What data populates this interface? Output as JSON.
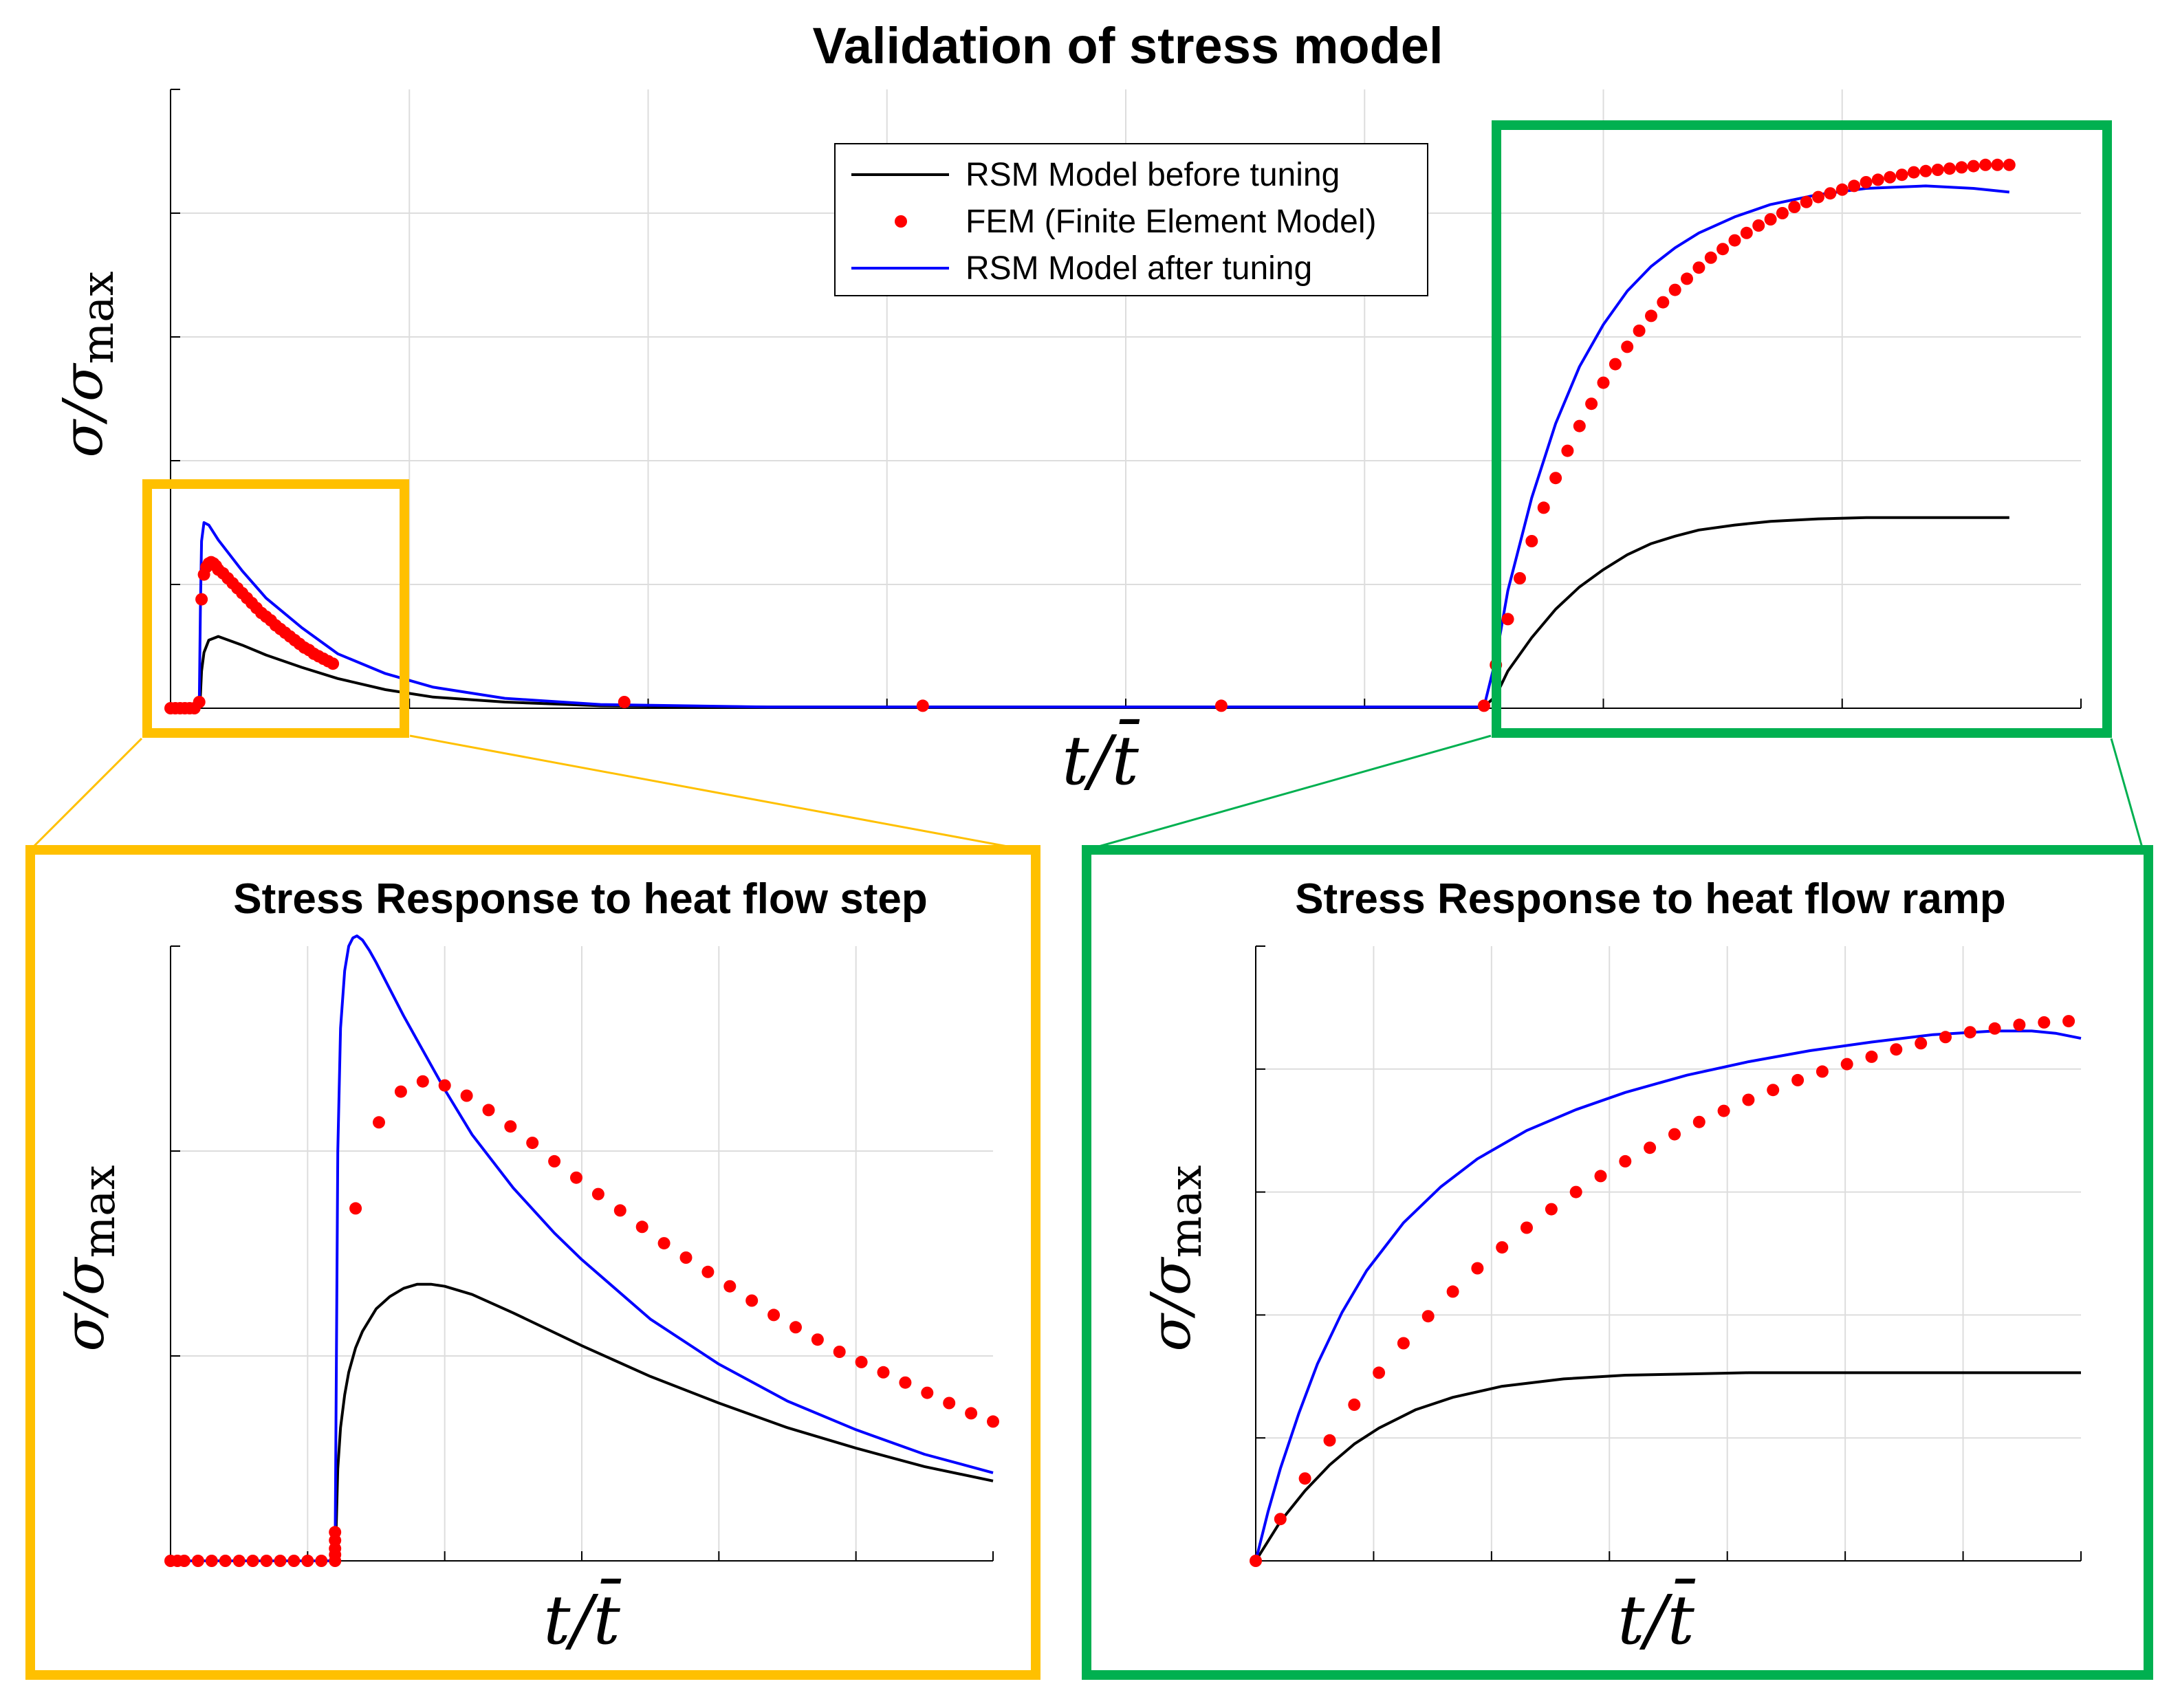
{
  "colors": {
    "yellow_box": "#FFC000",
    "green_box": "#00B050",
    "rsm_before": "#000000",
    "fem": "#FF0000",
    "rsm_after": "#0000FF",
    "grid": "#DDDDDD",
    "axis": "#000000"
  },
  "chart_data": [
    {
      "id": "overview",
      "type": "line",
      "title": "Validation of stress model",
      "xlabel": "t/t̄",
      "ylabel_base": "σ/σ",
      "ylabel_sub": "max",
      "xlim": [
        0,
        8
      ],
      "ylim": [
        0,
        5
      ],
      "legend": {
        "placement": "top-center",
        "entries": [
          "RSM Model before tuning",
          "FEM (Finite Element Model)",
          "RSM Model after tuning"
        ]
      },
      "series": [
        {
          "name": "RSM Model before tuning",
          "style": "line",
          "x": [
            0,
            0.12,
            0.125,
            0.13,
            0.14,
            0.16,
            0.2,
            0.3,
            0.4,
            0.55,
            0.7,
            0.9,
            1.1,
            1.4,
            1.8,
            2.5,
            3.5,
            4.5,
            5.5,
            5.55,
            5.6,
            5.7,
            5.8,
            5.9,
            6.0,
            6.1,
            6.2,
            6.3,
            6.4,
            6.55,
            6.7,
            6.9,
            7.1,
            7.35,
            7.7
          ],
          "y": [
            0,
            0,
            0.1,
            0.3,
            0.45,
            0.55,
            0.58,
            0.51,
            0.43,
            0.33,
            0.24,
            0.15,
            0.09,
            0.05,
            0.02,
            0.01,
            0.01,
            0.01,
            0.01,
            0.1,
            0.3,
            0.57,
            0.8,
            0.98,
            1.12,
            1.24,
            1.33,
            1.39,
            1.44,
            1.48,
            1.51,
            1.53,
            1.54,
            1.54,
            1.54
          ]
        },
        {
          "name": "RSM Model after tuning",
          "style": "line",
          "x": [
            0,
            0.12,
            0.125,
            0.13,
            0.14,
            0.16,
            0.2,
            0.3,
            0.4,
            0.55,
            0.7,
            0.9,
            1.1,
            1.4,
            1.8,
            2.5,
            3.5,
            4.5,
            5.5,
            5.55,
            5.6,
            5.7,
            5.8,
            5.9,
            6.0,
            6.1,
            6.2,
            6.3,
            6.4,
            6.55,
            6.7,
            6.9,
            7.1,
            7.35,
            7.55,
            7.7
          ],
          "y": [
            0,
            0,
            0.8,
            1.35,
            1.5,
            1.48,
            1.36,
            1.11,
            0.89,
            0.65,
            0.44,
            0.28,
            0.17,
            0.08,
            0.03,
            0.01,
            0.01,
            0.01,
            0.01,
            0.4,
            0.95,
            1.7,
            2.3,
            2.76,
            3.1,
            3.37,
            3.57,
            3.72,
            3.84,
            3.97,
            4.07,
            4.15,
            4.2,
            4.22,
            4.2,
            4.17
          ]
        },
        {
          "name": "FEM (Finite Element Model)",
          "style": "markers",
          "x": [
            0,
            0.02,
            0.04,
            0.06,
            0.08,
            0.1,
            0.12,
            0.13,
            0.14,
            0.15,
            0.16,
            0.17,
            0.18,
            0.19,
            0.2,
            0.22,
            0.24,
            0.26,
            0.28,
            0.3,
            0.32,
            0.34,
            0.36,
            0.38,
            0.4,
            0.42,
            0.44,
            0.46,
            0.48,
            0.5,
            0.52,
            0.54,
            0.56,
            0.58,
            0.6,
            0.62,
            0.64,
            0.66,
            0.68,
            1.9,
            3.15,
            4.4,
            5.5,
            5.55,
            5.6,
            5.65,
            5.7,
            5.75,
            5.8,
            5.85,
            5.9,
            5.95,
            6.0,
            6.05,
            6.1,
            6.15,
            6.2,
            6.25,
            6.3,
            6.35,
            6.4,
            6.45,
            6.5,
            6.55,
            6.6,
            6.65,
            6.7,
            6.75,
            6.8,
            6.85,
            6.9,
            6.95,
            7.0,
            7.05,
            7.1,
            7.15,
            7.2,
            7.25,
            7.3,
            7.35,
            7.4,
            7.45,
            7.5,
            7.55,
            7.6,
            7.65,
            7.7
          ],
          "y": [
            0,
            0,
            0,
            0,
            0,
            0,
            0.05,
            0.88,
            1.08,
            1.14,
            1.17,
            1.18,
            1.17,
            1.15,
            1.12,
            1.09,
            1.05,
            1.01,
            0.97,
            0.93,
            0.89,
            0.85,
            0.81,
            0.77,
            0.74,
            0.71,
            0.67,
            0.64,
            0.61,
            0.58,
            0.55,
            0.52,
            0.49,
            0.47,
            0.44,
            0.42,
            0.4,
            0.38,
            0.36,
            0.05,
            0.02,
            0.02,
            0.02,
            0.35,
            0.72,
            1.05,
            1.35,
            1.62,
            1.86,
            2.08,
            2.28,
            2.46,
            2.63,
            2.78,
            2.92,
            3.05,
            3.17,
            3.28,
            3.38,
            3.47,
            3.56,
            3.64,
            3.71,
            3.78,
            3.84,
            3.9,
            3.95,
            4.0,
            4.05,
            4.09,
            4.13,
            4.16,
            4.19,
            4.22,
            4.25,
            4.27,
            4.29,
            4.31,
            4.33,
            4.34,
            4.35,
            4.36,
            4.37,
            4.38,
            4.39,
            4.39,
            4.39
          ]
        }
      ]
    },
    {
      "id": "step",
      "type": "line",
      "title": "Stress Response to heat flow step",
      "xlabel": "t/t̄",
      "ylabel_base": "σ/σ",
      "ylabel_sub": "max",
      "xlim": [
        0,
        6
      ],
      "ylim": [
        0,
        3
      ],
      "series": [
        {
          "name": "RSM Model before tuning",
          "style": "line",
          "x": [
            0,
            1.2,
            1.21,
            1.22,
            1.24,
            1.27,
            1.3,
            1.35,
            1.4,
            1.5,
            1.6,
            1.7,
            1.8,
            1.9,
            2.0,
            2.2,
            2.5,
            3.0,
            3.5,
            4.0,
            4.5,
            5.0,
            5.5,
            6.0
          ],
          "y": [
            0,
            0,
            0.2,
            0.45,
            0.65,
            0.81,
            0.92,
            1.04,
            1.12,
            1.23,
            1.29,
            1.33,
            1.35,
            1.35,
            1.34,
            1.3,
            1.21,
            1.05,
            0.9,
            0.77,
            0.65,
            0.55,
            0.46,
            0.39
          ]
        },
        {
          "name": "RSM Model after tuning",
          "style": "line",
          "x": [
            0,
            1.2,
            1.21,
            1.22,
            1.24,
            1.27,
            1.3,
            1.33,
            1.36,
            1.4,
            1.45,
            1.5,
            1.6,
            1.7,
            1.8,
            2.0,
            2.2,
            2.5,
            2.8,
            3.0,
            3.5,
            4.0,
            4.5,
            5.0,
            5.5,
            6.0
          ],
          "y": [
            0,
            0,
            1.0,
            2.0,
            2.6,
            2.88,
            3.0,
            3.04,
            3.05,
            3.03,
            2.98,
            2.92,
            2.79,
            2.66,
            2.54,
            2.3,
            2.08,
            1.82,
            1.6,
            1.47,
            1.18,
            0.96,
            0.78,
            0.64,
            0.52,
            0.43
          ]
        },
        {
          "name": "FEM (Finite Element Model)",
          "style": "markers",
          "x": [
            0,
            0.05,
            0.1,
            0.2,
            0.3,
            0.4,
            0.5,
            0.6,
            0.7,
            0.8,
            0.9,
            1.0,
            1.1,
            1.2,
            1.2,
            1.2,
            1.2,
            1.2,
            1.35,
            1.52,
            1.68,
            1.84,
            2.0,
            2.16,
            2.32,
            2.48,
            2.64,
            2.8,
            2.96,
            3.12,
            3.28,
            3.44,
            3.6,
            3.76,
            3.92,
            4.08,
            4.24,
            4.4,
            4.56,
            4.72,
            4.88,
            5.04,
            5.2,
            5.36,
            5.52,
            5.68,
            5.84,
            6.0
          ],
          "y": [
            0,
            0,
            0,
            0,
            0,
            0,
            0,
            0,
            0,
            0,
            0,
            0,
            0,
            0,
            0.03,
            0.06,
            0.1,
            0.14,
            1.72,
            2.14,
            2.29,
            2.34,
            2.32,
            2.27,
            2.2,
            2.12,
            2.04,
            1.95,
            1.87,
            1.79,
            1.71,
            1.63,
            1.55,
            1.48,
            1.41,
            1.34,
            1.27,
            1.2,
            1.14,
            1.08,
            1.02,
            0.97,
            0.92,
            0.87,
            0.82,
            0.77,
            0.72,
            0.68
          ]
        }
      ]
    },
    {
      "id": "ramp",
      "type": "line",
      "title": "Stress Response to heat flow ramp",
      "xlabel": "t/t̄",
      "ylabel_base": "σ/σ",
      "ylabel_sub": "max",
      "xlim": [
        0,
        6.7
      ],
      "ylim": [
        0,
        5
      ],
      "series": [
        {
          "name": "RSM Model before tuning",
          "style": "line",
          "x": [
            0,
            0.2,
            0.4,
            0.6,
            0.8,
            1.0,
            1.3,
            1.6,
            2.0,
            2.5,
            3.0,
            3.5,
            4.0,
            4.5,
            5.0,
            5.5,
            6.0,
            6.7
          ],
          "y": [
            0,
            0.32,
            0.57,
            0.78,
            0.95,
            1.08,
            1.23,
            1.33,
            1.42,
            1.48,
            1.51,
            1.52,
            1.53,
            1.53,
            1.53,
            1.53,
            1.53,
            1.53
          ]
        },
        {
          "name": "RSM Model after tuning",
          "style": "line",
          "x": [
            0,
            0.1,
            0.2,
            0.35,
            0.5,
            0.7,
            0.9,
            1.2,
            1.5,
            1.8,
            2.2,
            2.6,
            3.0,
            3.5,
            4.0,
            4.5,
            5.0,
            5.5,
            6.0,
            6.3,
            6.5,
            6.7
          ],
          "y": [
            0,
            0.4,
            0.75,
            1.2,
            1.6,
            2.02,
            2.36,
            2.75,
            3.04,
            3.27,
            3.5,
            3.67,
            3.81,
            3.95,
            4.06,
            4.15,
            4.22,
            4.28,
            4.31,
            4.31,
            4.29,
            4.25
          ]
        },
        {
          "name": "FEM (Finite Element Model)",
          "style": "markers",
          "x": [
            0,
            0.2,
            0.4,
            0.6,
            0.8,
            1.0,
            1.2,
            1.4,
            1.6,
            1.8,
            2.0,
            2.2,
            2.4,
            2.6,
            2.8,
            3.0,
            3.2,
            3.4,
            3.6,
            3.8,
            4.0,
            4.2,
            4.4,
            4.6,
            4.8,
            5.0,
            5.2,
            5.4,
            5.6,
            5.8,
            6.0,
            6.2,
            6.4,
            6.6
          ],
          "y": [
            0,
            0.34,
            0.67,
            0.98,
            1.27,
            1.53,
            1.77,
            1.99,
            2.19,
            2.38,
            2.55,
            2.71,
            2.86,
            3.0,
            3.13,
            3.25,
            3.36,
            3.47,
            3.57,
            3.66,
            3.75,
            3.83,
            3.91,
            3.98,
            4.04,
            4.1,
            4.16,
            4.21,
            4.26,
            4.3,
            4.33,
            4.36,
            4.38,
            4.39
          ]
        }
      ]
    }
  ]
}
